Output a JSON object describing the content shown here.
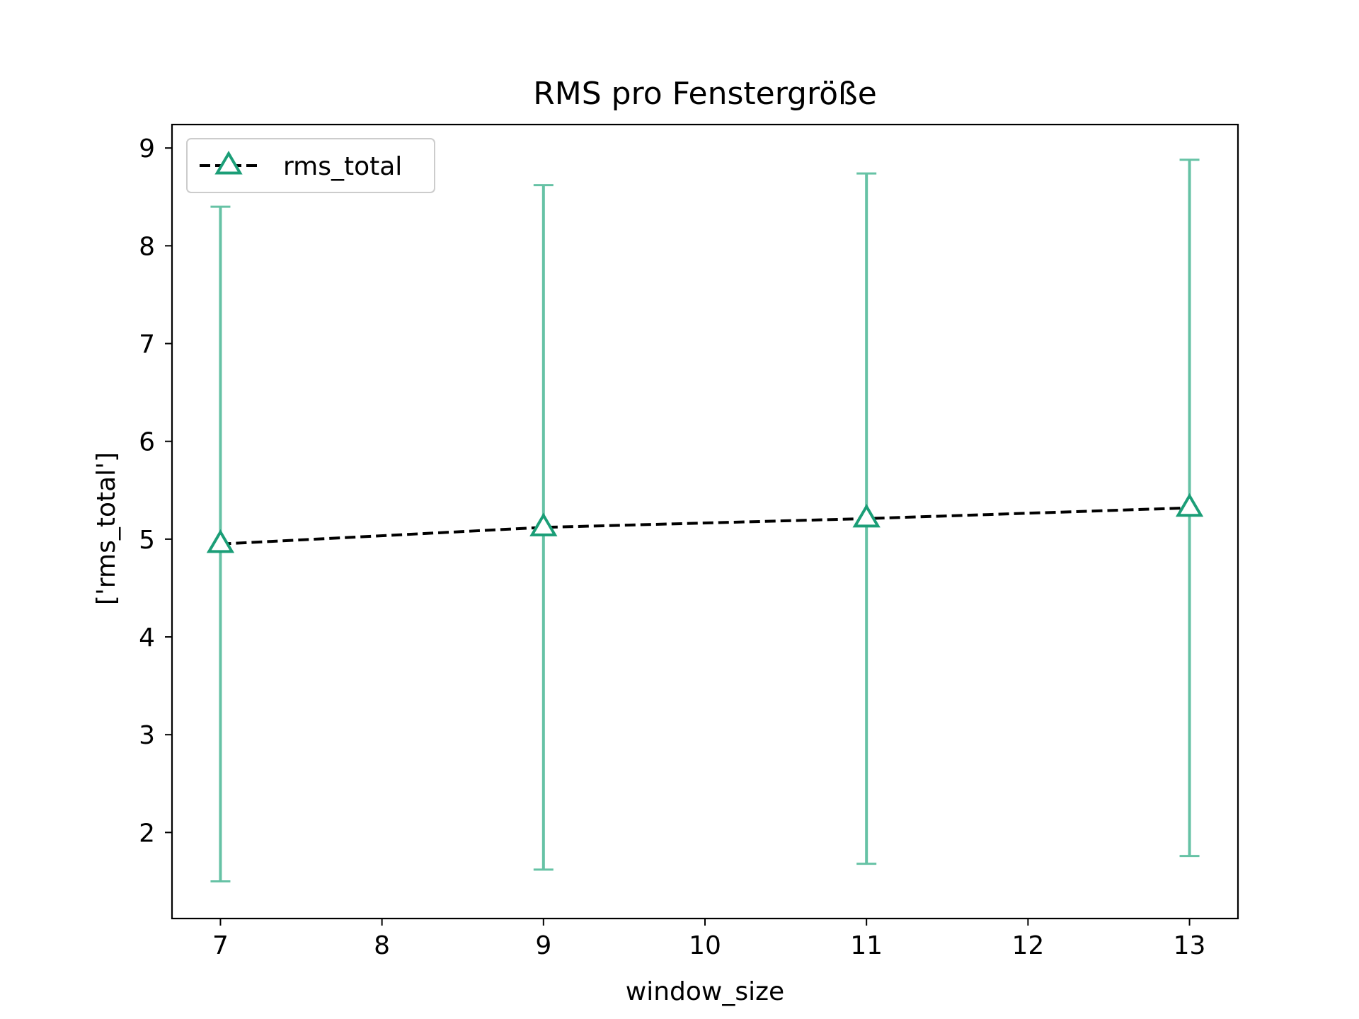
{
  "chart_data": {
    "type": "line",
    "title": "RMS pro Fenstergröße",
    "xlabel": "window_size",
    "ylabel": "['rms_total']",
    "xlim": [
      6.7,
      13.3
    ],
    "ylim": [
      1.12,
      9.24
    ],
    "xticks": [
      7,
      8,
      9,
      10,
      11,
      12,
      13
    ],
    "yticks": [
      2,
      3,
      4,
      5,
      6,
      7,
      8,
      9
    ],
    "grid": false,
    "legend_position": "top-left",
    "series": [
      {
        "name": "rms_total",
        "x": [
          7,
          9,
          11,
          13
        ],
        "y": [
          4.95,
          5.12,
          5.21,
          5.32
        ],
        "error_lower": [
          1.5,
          1.62,
          1.68,
          1.76
        ],
        "error_upper": [
          8.4,
          8.62,
          8.74,
          8.88
        ],
        "line_color": "#000000",
        "line_style": "dashed",
        "marker": "triangle",
        "marker_color": "#1b9e77",
        "error_color": "#66c2a5"
      }
    ]
  }
}
